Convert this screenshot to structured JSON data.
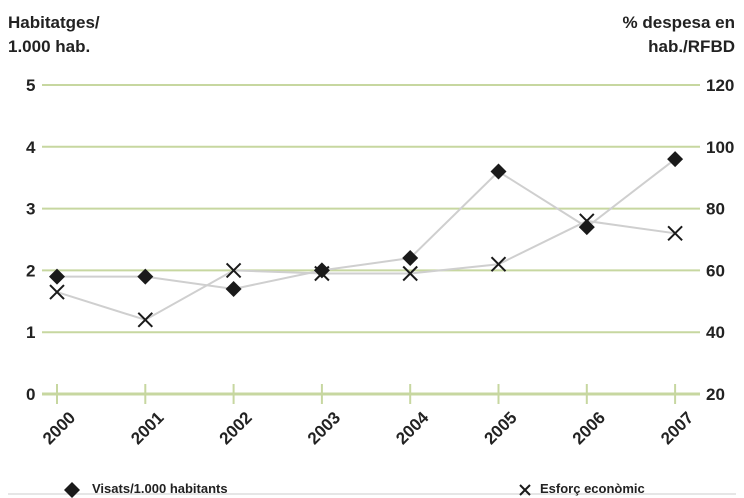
{
  "chart_data": {
    "type": "line",
    "left_axis_title": [
      "Habitatges/",
      "1.000 hab."
    ],
    "right_axis_title": [
      "% despesa en",
      "hab./RFBD"
    ],
    "x": [
      "2000",
      "2001",
      "2002",
      "2003",
      "2004",
      "2005",
      "2006",
      "2007"
    ],
    "left_ticks": [
      "0",
      "1",
      "2",
      "3",
      "4",
      "5"
    ],
    "right_ticks": [
      "20",
      "40",
      "60",
      "80",
      "100",
      "120"
    ],
    "left_ylim": [
      0,
      5
    ],
    "right_ylim": [
      20,
      120
    ],
    "grid": true,
    "legend_position": "bottom",
    "series": [
      {
        "name": "Visats/1.000 habitants",
        "axis": "left",
        "marker": "diamond",
        "values": [
          1.9,
          1.9,
          1.7,
          2.0,
          2.2,
          3.6,
          2.7,
          3.8
        ]
      },
      {
        "name": "Esforç econòmic",
        "axis": "right",
        "marker": "x",
        "values": [
          53,
          44,
          60,
          59,
          59,
          62,
          76,
          72
        ]
      }
    ],
    "colors": {
      "grid": "#c7d7a0",
      "line": "#cfcfcf",
      "marker": "#1a1a1a",
      "text": "#222222"
    }
  }
}
